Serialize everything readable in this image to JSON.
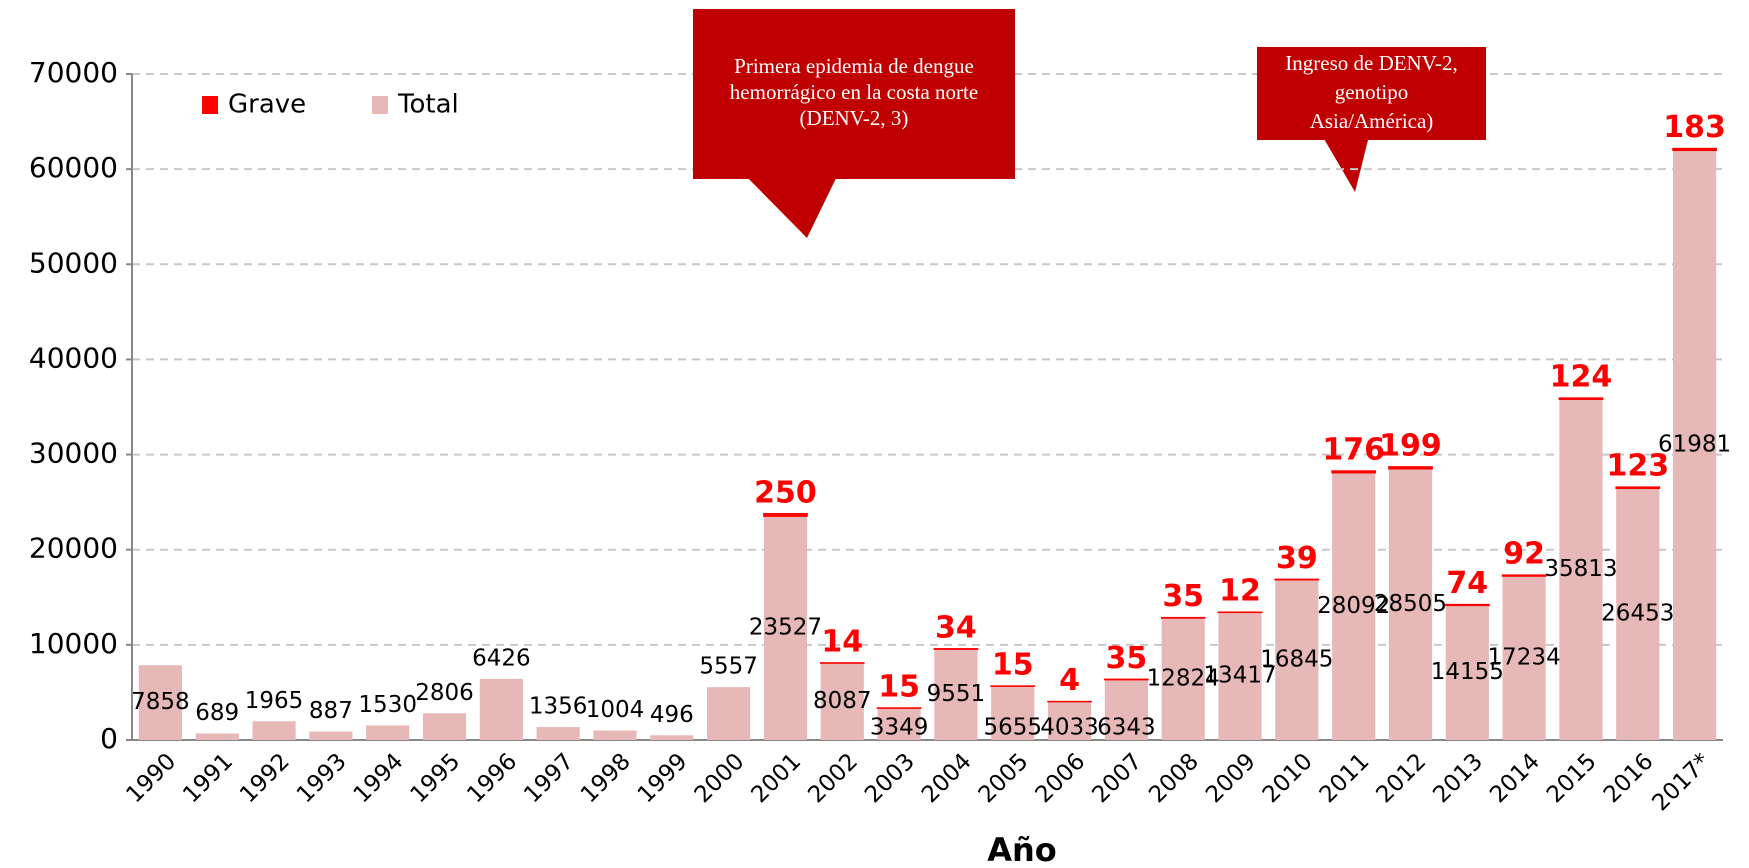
{
  "chart_data": {
    "type": "stacked_bar",
    "x_label": "Año",
    "categories": [
      "1990",
      "1991",
      "1992",
      "1993",
      "1994",
      "1995",
      "1996",
      "1997",
      "1998",
      "1999",
      "2000",
      "2001",
      "2002",
      "2003",
      "2004",
      "2005",
      "2006",
      "2007",
      "2008",
      "2009",
      "2010",
      "2011",
      "2012",
      "2013",
      "2014",
      "2015",
      "2016",
      "2017*"
    ],
    "series": [
      {
        "name": "Grave",
        "color": "#ff0000",
        "values": [
          null,
          null,
          null,
          null,
          null,
          null,
          null,
          null,
          null,
          null,
          null,
          250,
          14,
          15,
          34,
          15,
          4,
          35,
          35,
          12,
          39,
          176,
          199,
          74,
          92,
          124,
          123,
          183
        ]
      },
      {
        "name": "Total",
        "color": "#e6b8b7",
        "values": [
          7858,
          689,
          1965,
          887,
          1530,
          2806,
          6426,
          1356,
          1004,
          496,
          5557,
          23527,
          8087,
          3349,
          9551,
          5655,
          4033,
          6343,
          12824,
          13417,
          16845,
          28092,
          28505,
          14155,
          17234,
          35813,
          26453,
          61981
        ]
      }
    ],
    "ylim": [
      0,
      70000
    ],
    "yticks": [
      0,
      10000,
      20000,
      30000,
      40000,
      50000,
      60000,
      70000
    ],
    "grid": true,
    "legend": "top-left",
    "annotations": [
      {
        "text": "Primera epidemia de dengue hemorrágico en la costa norte (DENV-2, 3)"
      },
      {
        "text": "Ingreso de DENV-2, genotipo Asia/América)"
      }
    ]
  }
}
